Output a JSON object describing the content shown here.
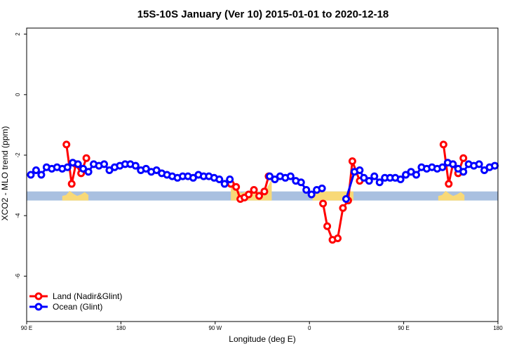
{
  "chart_data": {
    "type": "line",
    "title": "15S-10S January (Ver 10)   2015-01-01 to 2020-12-18",
    "xlabel": "Longitude (deg E)",
    "ylabel": "XCO2 - MLO trend (ppm)",
    "xlim": [
      0,
      450
    ],
    "ylim": [
      -7.5,
      2.2
    ],
    "x_ticks": [
      {
        "value": 0,
        "label": "90 E"
      },
      {
        "value": 90,
        "label": "180"
      },
      {
        "value": 180,
        "label": "90 W"
      },
      {
        "value": 270,
        "label": "0"
      },
      {
        "value": 360,
        "label": "90 E"
      },
      {
        "value": 450,
        "label": "180"
      }
    ],
    "y_ticks": [
      2,
      0,
      -2,
      -4,
      -6
    ],
    "x_axis_note": "x values in degrees of longitude traversed eastward from 90 E",
    "land_band": {
      "ymin": -3.5,
      "ymax": -3.2,
      "color": "#a9c0e0"
    },
    "land_fill_color": "#f8d977",
    "land_profile": [
      {
        "lon_start": 34,
        "lon_end": 59,
        "height_values": [
          -3.35,
          -3.32,
          -3.18,
          -3.28,
          -3.35,
          -3.3,
          -3.22,
          -3.32
        ]
      },
      {
        "lon_start": 195,
        "lon_end": 234,
        "height_values": [
          -2.8,
          -3.1,
          -3.25,
          -3.2,
          -3.3,
          -3.18,
          -3.25,
          -3.1,
          -2.8
        ]
      },
      {
        "lon_start": 273,
        "lon_end": 312,
        "height_values": [
          -3.2,
          -3.2,
          -3.2,
          -3.2,
          -3.2,
          -3.2
        ]
      },
      {
        "lon_start": 393,
        "lon_end": 418,
        "height_values": [
          -3.35,
          -3.32,
          -3.18,
          -3.28,
          -3.35,
          -3.3,
          -3.22,
          -3.32
        ]
      }
    ],
    "series": [
      {
        "name": "Land (Nadir&Glint)",
        "color": "#ff0000",
        "segments": [
          [
            [
              38,
              -1.65
            ],
            [
              43,
              -2.95
            ],
            [
              47,
              -2.3
            ],
            [
              52,
              -2.6
            ],
            [
              57,
              -2.1
            ]
          ],
          [
            [
              195,
              -2.95
            ],
            [
              200,
              -3.05
            ],
            [
              204,
              -3.45
            ],
            [
              208,
              -3.4
            ],
            [
              212,
              -3.3
            ],
            [
              217,
              -3.15
            ],
            [
              222,
              -3.35
            ],
            [
              227,
              -3.2
            ],
            [
              231,
              -2.7
            ]
          ],
          [
            [
              283,
              -3.6
            ],
            [
              287,
              -4.35
            ],
            [
              292,
              -4.8
            ],
            [
              297,
              -4.75
            ],
            [
              302,
              -3.75
            ],
            [
              307,
              -3.5
            ],
            [
              311,
              -2.2
            ],
            [
              318,
              -2.85
            ]
          ],
          [
            [
              398,
              -1.65
            ],
            [
              403,
              -2.95
            ],
            [
              407,
              -2.3
            ],
            [
              412,
              -2.6
            ],
            [
              417,
              -2.1
            ]
          ]
        ]
      },
      {
        "name": "Ocean (Glint)",
        "color": "#0000ff",
        "segments": [
          [
            [
              4,
              -2.65
            ],
            [
              9,
              -2.5
            ],
            [
              14,
              -2.65
            ],
            [
              19,
              -2.4
            ],
            [
              24,
              -2.45
            ],
            [
              29,
              -2.4
            ],
            [
              34,
              -2.45
            ],
            [
              39,
              -2.4
            ],
            [
              44,
              -2.25
            ],
            [
              49,
              -2.3
            ],
            [
              54,
              -2.45
            ],
            [
              59,
              -2.55
            ],
            [
              64,
              -2.3
            ],
            [
              69,
              -2.35
            ],
            [
              74,
              -2.3
            ],
            [
              79,
              -2.5
            ],
            [
              84,
              -2.4
            ],
            [
              89,
              -2.35
            ],
            [
              94,
              -2.3
            ],
            [
              99,
              -2.3
            ],
            [
              104,
              -2.35
            ],
            [
              109,
              -2.5
            ],
            [
              114,
              -2.45
            ],
            [
              119,
              -2.55
            ],
            [
              124,
              -2.5
            ],
            [
              129,
              -2.6
            ],
            [
              134,
              -2.65
            ],
            [
              139,
              -2.7
            ],
            [
              144,
              -2.75
            ],
            [
              149,
              -2.7
            ],
            [
              154,
              -2.7
            ],
            [
              159,
              -2.75
            ],
            [
              164,
              -2.65
            ],
            [
              169,
              -2.7
            ],
            [
              174,
              -2.7
            ],
            [
              179,
              -2.75
            ],
            [
              184,
              -2.8
            ],
            [
              189,
              -2.95
            ],
            [
              194,
              -2.8
            ]
          ],
          [
            [
              232,
              -2.7
            ],
            [
              237,
              -2.8
            ],
            [
              242,
              -2.7
            ],
            [
              247,
              -2.75
            ],
            [
              252,
              -2.7
            ],
            [
              257,
              -2.85
            ],
            [
              262,
              -2.9
            ],
            [
              267,
              -3.15
            ],
            [
              272,
              -3.3
            ],
            [
              277,
              -3.15
            ],
            [
              282,
              -3.1
            ]
          ],
          [
            [
              305,
              -3.45
            ],
            [
              313,
              -2.55
            ],
            [
              318,
              -2.5
            ],
            [
              322,
              -2.75
            ],
            [
              327,
              -2.85
            ],
            [
              332,
              -2.7
            ],
            [
              337,
              -2.9
            ],
            [
              342,
              -2.75
            ],
            [
              347,
              -2.75
            ],
            [
              352,
              -2.75
            ],
            [
              357,
              -2.8
            ],
            [
              362,
              -2.65
            ],
            [
              367,
              -2.55
            ],
            [
              372,
              -2.65
            ],
            [
              377,
              -2.4
            ],
            [
              382,
              -2.45
            ],
            [
              387,
              -2.4
            ],
            [
              392,
              -2.45
            ],
            [
              397,
              -2.4
            ],
            [
              402,
              -2.25
            ],
            [
              407,
              -2.3
            ],
            [
              412,
              -2.45
            ],
            [
              417,
              -2.55
            ],
            [
              422,
              -2.3
            ],
            [
              427,
              -2.35
            ],
            [
              432,
              -2.3
            ],
            [
              437,
              -2.5
            ],
            [
              442,
              -2.4
            ],
            [
              447,
              -2.35
            ]
          ]
        ]
      }
    ],
    "legend_position": "bottom-left",
    "grid": false
  }
}
